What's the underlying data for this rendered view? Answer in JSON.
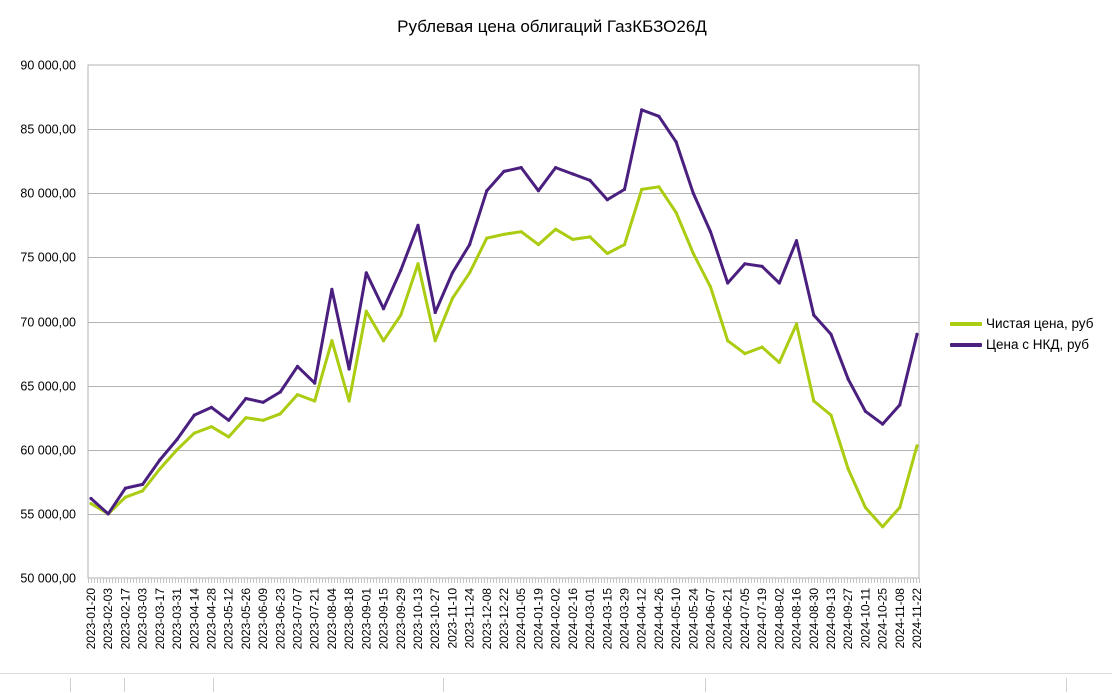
{
  "chart_data": {
    "type": "line",
    "title": "Рублевая цена облигаций ГазКБЗО26Д",
    "xlabel": "",
    "ylabel": "",
    "ylim": [
      50000,
      90000
    ],
    "yticks": [
      "50 000,00",
      "55 000,00",
      "60 000,00",
      "65 000,00",
      "70 000,00",
      "75 000,00",
      "80 000,00",
      "85 000,00",
      "90 000,00"
    ],
    "grid": true,
    "legend_position": "right",
    "x_tick_labels": [
      "2023-01-20",
      "2023-02-03",
      "2023-02-17",
      "2023-03-03",
      "2023-03-17",
      "2023-03-31",
      "2023-04-14",
      "2023-04-28",
      "2023-05-12",
      "2023-05-26",
      "2023-06-09",
      "2023-06-23",
      "2023-07-07",
      "2023-07-21",
      "2023-08-04",
      "2023-08-18",
      "2023-09-01",
      "2023-09-15",
      "2023-09-29",
      "2023-10-13",
      "2023-10-27",
      "2023-11-10",
      "2023-11-24",
      "2023-12-08",
      "2023-12-22",
      "2024-01-05",
      "2024-01-19",
      "2024-02-02",
      "2024-02-16",
      "2024-03-01",
      "2024-03-15",
      "2024-03-29",
      "2024-04-12",
      "2024-04-26",
      "2024-05-10",
      "2024-05-24",
      "2024-06-07",
      "2024-06-21",
      "2024-07-05",
      "2024-07-19",
      "2024-08-02",
      "2024-08-16",
      "2024-08-30",
      "2024-09-13",
      "2024-09-27",
      "2024-10-11",
      "2024-10-25",
      "2024-11-08",
      "2024-11-22"
    ],
    "x": [
      "2023-01-20",
      "2023-02-03",
      "2023-02-17",
      "2023-03-03",
      "2023-03-17",
      "2023-03-31",
      "2023-04-14",
      "2023-04-28",
      "2023-05-12",
      "2023-05-26",
      "2023-06-09",
      "2023-06-23",
      "2023-07-07",
      "2023-07-21",
      "2023-08-04",
      "2023-08-18",
      "2023-09-01",
      "2023-09-15",
      "2023-09-29",
      "2023-10-13",
      "2023-10-27",
      "2023-11-10",
      "2023-11-24",
      "2023-12-08",
      "2023-12-22",
      "2024-01-05",
      "2024-01-19",
      "2024-02-02",
      "2024-02-16",
      "2024-03-01",
      "2024-03-15",
      "2024-03-29",
      "2024-04-12",
      "2024-04-26",
      "2024-05-10",
      "2024-05-24",
      "2024-06-07",
      "2024-06-21",
      "2024-07-05",
      "2024-07-19",
      "2024-08-02",
      "2024-08-16",
      "2024-08-30",
      "2024-09-13",
      "2024-09-27",
      "2024-10-11",
      "2024-10-25",
      "2024-11-08",
      "2024-11-22"
    ],
    "series": [
      {
        "name": "Чистая цена, руб",
        "color": "#aacc11",
        "values": [
          55800,
          55000,
          56300,
          56800,
          58500,
          60000,
          61300,
          61800,
          61000,
          62500,
          62300,
          62800,
          64300,
          63800,
          68500,
          63800,
          70800,
          68500,
          70500,
          74500,
          68500,
          71800,
          73800,
          76500,
          76800,
          77000,
          76000,
          77200,
          76400,
          76600,
          75300,
          76000,
          80300,
          80500,
          78500,
          75300,
          72700,
          68500,
          67500,
          68000,
          66800,
          69800,
          63800,
          62700,
          58500,
          55500,
          54000,
          55500,
          60300
        ]
      },
      {
        "name": "Цена с НКД, руб",
        "color": "#4a1f7f",
        "values": [
          56200,
          55000,
          57000,
          57300,
          59200,
          60800,
          62700,
          63300,
          62300,
          64000,
          63700,
          64500,
          66500,
          65200,
          72500,
          66300,
          73800,
          71000,
          74000,
          77500,
          70700,
          73800,
          76000,
          80200,
          81700,
          82000,
          80200,
          82000,
          81500,
          81000,
          79500,
          80300,
          86500,
          86000,
          84000,
          80000,
          77000,
          73000,
          74500,
          74300,
          73000,
          76300,
          70500,
          69000,
          65500,
          63000,
          62000,
          63500,
          69000
        ]
      }
    ]
  }
}
